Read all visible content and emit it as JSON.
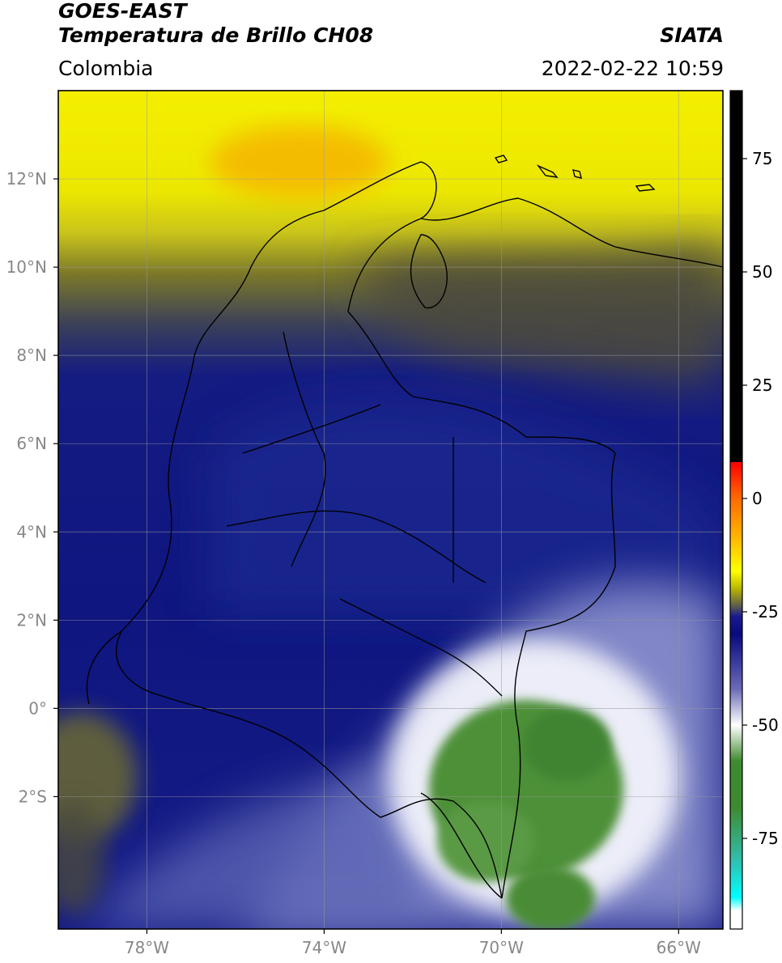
{
  "header": {
    "satellite": "GOES-EAST",
    "product": "Temperatura de Brillo CH08",
    "brand": "SIATA",
    "region": "Colombia",
    "datetime": "2022-02-22 10:59"
  },
  "map": {
    "lon_range": [
      -80,
      -65
    ],
    "lat_range": [
      -5,
      14
    ],
    "lon_ticks": [
      {
        "value": -78,
        "label": "78°W"
      },
      {
        "value": -74,
        "label": "74°W"
      },
      {
        "value": -70,
        "label": "70°W"
      },
      {
        "value": -66,
        "label": "66°W"
      }
    ],
    "lat_ticks": [
      {
        "value": 12,
        "label": "12°N"
      },
      {
        "value": 10,
        "label": "10°N"
      },
      {
        "value": 8,
        "label": "8°N"
      },
      {
        "value": 6,
        "label": "6°N"
      },
      {
        "value": 4,
        "label": "4°N"
      },
      {
        "value": 2,
        "label": "2°N"
      },
      {
        "value": 0,
        "label": "0°"
      },
      {
        "value": -2,
        "label": "2°S"
      }
    ],
    "colors": {
      "warm_yellow": "#f2ee00",
      "orange": "#f5b400",
      "olive": "#6e6b2c",
      "dark_blue": "#0d1580",
      "blue": "#2b3a96",
      "lavender": "#b4b8e0",
      "white": "#ffffff",
      "green": "#4a8f35",
      "border": "#000000"
    }
  },
  "colorbar": {
    "range": [
      -95,
      90
    ],
    "ticks": [
      {
        "value": 75,
        "label": "75"
      },
      {
        "value": 50,
        "label": "50"
      },
      {
        "value": 25,
        "label": "25"
      },
      {
        "value": 0,
        "label": "0"
      },
      {
        "value": -25,
        "label": "-25"
      },
      {
        "value": -50,
        "label": "-50"
      },
      {
        "value": -75,
        "label": "-75"
      }
    ],
    "stops": [
      {
        "value": 90,
        "color": "#000000"
      },
      {
        "value": 8,
        "color": "#000000"
      },
      {
        "value": 8,
        "color": "#ff0000"
      },
      {
        "value": 0,
        "color": "#ff6a00"
      },
      {
        "value": -8,
        "color": "#ffb000"
      },
      {
        "value": -16,
        "color": "#ffff00"
      },
      {
        "value": -20,
        "color": "#b5b400"
      },
      {
        "value": -24,
        "color": "#555555"
      },
      {
        "value": -26,
        "color": "#1a1a90"
      },
      {
        "value": -30,
        "color": "#0a0a80"
      },
      {
        "value": -42,
        "color": "#6a6ab8"
      },
      {
        "value": -50,
        "color": "#ffffff"
      },
      {
        "value": -58,
        "color": "#3e8a2e"
      },
      {
        "value": -68,
        "color": "#3e8a2e"
      },
      {
        "value": -80,
        "color": "#30c0b0"
      },
      {
        "value": -88,
        "color": "#00ffff"
      },
      {
        "value": -91,
        "color": "#ffffff"
      },
      {
        "value": -95,
        "color": "#ffffff"
      }
    ]
  }
}
